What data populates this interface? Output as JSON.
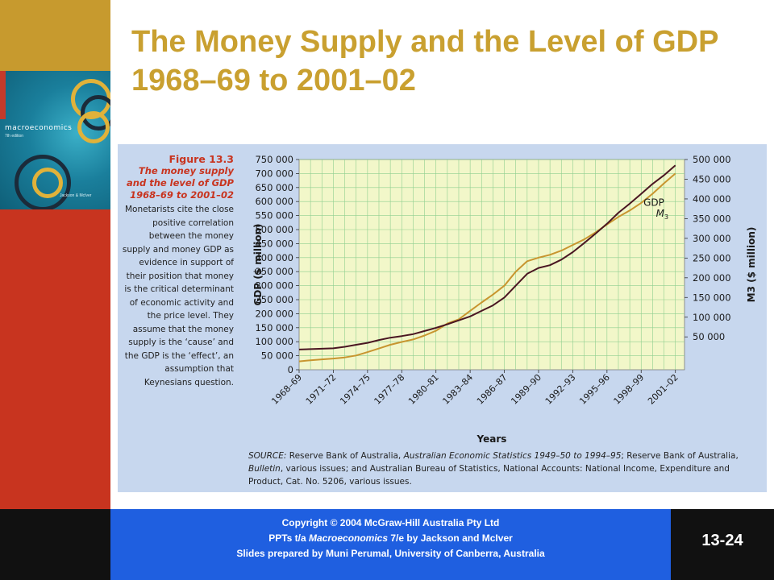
{
  "slide": {
    "title": "The Money Supply and the Level of GDP 1968–69 to 2001–02",
    "slide_number": "13-24"
  },
  "book_cover": {
    "title": "macroeconomics",
    "edition": "7th edition",
    "authors": "Jackson & McIver"
  },
  "caption": {
    "figure_number": "Figure 13.3",
    "figure_title": "The money supply and the level of GDP 1968–69 to 2001–02",
    "body": "Monetarists cite the close positive correlation between the money supply and money GDP as evidence in support of their position that money is the critical determinant of economic activity and the price level. They assume that the money supply is the ‘cause’ and the GDP is the ‘effect’, an assumption that Keynesians question."
  },
  "source": {
    "label": "SOURCE:",
    "t1": " Reserve Bank of Australia, ",
    "i1": "Australian Economic Statistics 1949–50 to 1994–95",
    "t2": "; Reserve Bank of Australia, ",
    "i2": "Bulletin",
    "t3": ", various issues; and Australian Bureau of Statistics, National Accounts: National Income, Expenditure and Product, Cat. No. 5206, various issues."
  },
  "footer": {
    "line1": "Copyright © 2004 McGraw-Hill Australia Pty Ltd",
    "line2_pre": "PPTs t/a ",
    "line2_italic": "Macroeconomics",
    "line2_post": " 7/e by Jackson and McIver",
    "line3": "Slides prepared by Muni Perumal, University of Canberra, Australia"
  },
  "colors": {
    "gdp_line": "#c8952f",
    "m3_line": "#4a1622",
    "plot_bg": "#f2f7c9",
    "grid": "#8fcf8f"
  },
  "chart_data": {
    "type": "line",
    "xlabel": "Years",
    "ylabel_left": "GDP ($ million)",
    "ylabel_right": "M3 ($ million)",
    "x_ticks": [
      "1968–69",
      "1971–72",
      "1974–75",
      "1977–78",
      "1980–81",
      "1983–84",
      "1986–87",
      "1989–90",
      "1992–93",
      "1995–96",
      "1998–99",
      "2001–02"
    ],
    "y_left_ticks": [
      0,
      50000,
      100000,
      150000,
      200000,
      250000,
      300000,
      350000,
      400000,
      450000,
      500000,
      550000,
      600000,
      650000,
      700000,
      750000
    ],
    "y_left_labels": [
      "0",
      "50 000",
      "100 000",
      "150 000",
      "200 000",
      "250 000",
      "300 000",
      "350 000",
      "400 000",
      "450 000",
      "500 000",
      "550 000",
      "600 000",
      "650 000",
      "700 000",
      "750 000"
    ],
    "y_right_ticks": [
      50000,
      100000,
      150000,
      200000,
      250000,
      300000,
      350000,
      400000,
      450000,
      500000
    ],
    "y_right_labels": [
      "50 000",
      "100 000",
      "150 000",
      "200 000",
      "250 000",
      "300 000",
      "350 000",
      "400 000",
      "450 000",
      "500 000"
    ],
    "ylim_left": [
      0,
      750000
    ],
    "ylim_right": [
      -33333,
      500000
    ],
    "grid": true,
    "series": [
      {
        "name": "GDP",
        "axis": "left",
        "x": [
          1968,
          1969,
          1970,
          1971,
          1972,
          1973,
          1974,
          1975,
          1976,
          1977,
          1978,
          1979,
          1980,
          1981,
          1982,
          1983,
          1984,
          1985,
          1986,
          1987,
          1988,
          1989,
          1990,
          1991,
          1992,
          1993,
          1994,
          1995,
          1996,
          1997,
          1998,
          1999,
          2000,
          2001
        ],
        "values": [
          30000,
          34000,
          37000,
          40000,
          44000,
          51000,
          63000,
          76000,
          89000,
          99000,
          108000,
          122000,
          139000,
          165000,
          180000,
          210000,
          240000,
          268000,
          300000,
          350000,
          387000,
          400000,
          410000,
          425000,
          445000,
          465000,
          490000,
          518000,
          545000,
          568000,
          595000,
          628000,
          665000,
          700000
        ]
      },
      {
        "name": "M3",
        "axis": "right",
        "x": [
          1968,
          1969,
          1970,
          1971,
          1972,
          1973,
          1974,
          1975,
          1976,
          1977,
          1978,
          1979,
          1980,
          1981,
          1982,
          1983,
          1984,
          1985,
          1986,
          1987,
          1988,
          1989,
          1990,
          1991,
          1992,
          1993,
          1994,
          1995,
          1996,
          1997,
          1998,
          1999,
          2000,
          2001
        ],
        "values": [
          18000,
          19000,
          20000,
          21000,
          25000,
          30000,
          35000,
          42000,
          48000,
          52000,
          57000,
          65000,
          73000,
          82000,
          92000,
          102000,
          116000,
          130000,
          150000,
          180000,
          210000,
          225000,
          232000,
          246000,
          265000,
          288000,
          312000,
          337000,
          365000,
          388000,
          413000,
          438000,
          460000,
          485000
        ]
      }
    ],
    "series_labels": [
      {
        "series": "GDP",
        "text": "GDP",
        "x": 1998.2,
        "y": 585000,
        "axis": "left"
      },
      {
        "series": "M3",
        "text": "M",
        "sub": "3",
        "x": 1999.3,
        "y": 355000,
        "axis": "right"
      }
    ]
  }
}
